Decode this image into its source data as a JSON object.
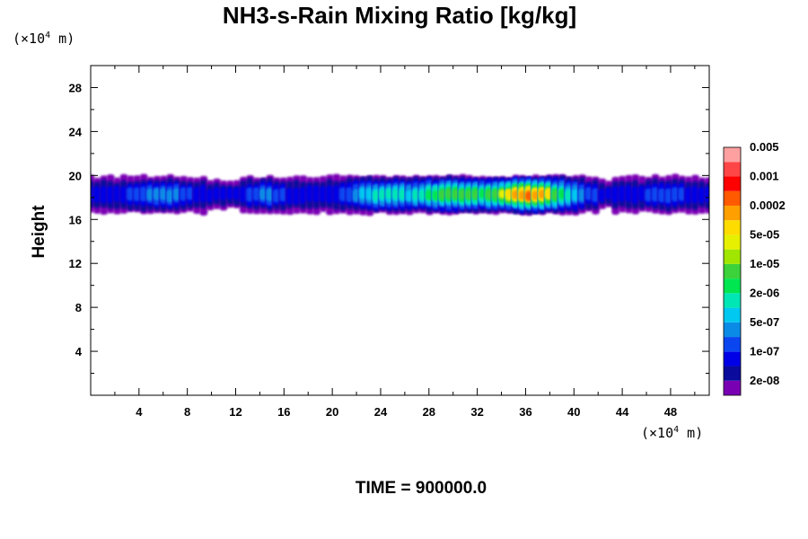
{
  "chart_data": {
    "type": "heatmap",
    "title": "NH3-s-Rain Mixing Ratio [kg/kg]",
    "ylabel": "Height",
    "x_unit_prefix": "(×10",
    "exponent": "4",
    "unit_suffix": " m)",
    "footer": "TIME = 900000.0",
    "xlim": [
      0,
      51.2
    ],
    "ylim": [
      0,
      30
    ],
    "xticks": [
      4,
      8,
      12,
      16,
      20,
      24,
      28,
      32,
      36,
      40,
      44,
      48
    ],
    "yticks": [
      4,
      8,
      12,
      16,
      20,
      24,
      28
    ],
    "xtick_labels": [
      "4",
      "8",
      "12",
      "16",
      "20",
      "24",
      "28",
      "32",
      "36",
      "40",
      "44",
      "48"
    ],
    "ytick_labels": [
      "4",
      "8",
      "12",
      "16",
      "20",
      "24",
      "28"
    ],
    "colorbar": {
      "colors": [
        "#7a00b4",
        "#0a0a9c",
        "#0000e6",
        "#0a46f0",
        "#0a8ce6",
        "#00c8f0",
        "#00e6b4",
        "#00e650",
        "#3cd23c",
        "#a0e600",
        "#e6f000",
        "#ffdc00",
        "#ffa000",
        "#ff5a00",
        "#ff0000",
        "#ff4646",
        "#ffa0a0"
      ],
      "labels": [
        "2e-08",
        "1e-07",
        "5e-07",
        "2e-06",
        "1e-05",
        "5e-05",
        "0.0002",
        "0.001",
        "0.005"
      ]
    },
    "band": {
      "y_bottom": 16.5,
      "y_top": 20,
      "note": "nonzero mixing ratio confined to layer around 17–20 (×10^4 m); maximum near x ≈ 34–39"
    },
    "grid": false
  }
}
